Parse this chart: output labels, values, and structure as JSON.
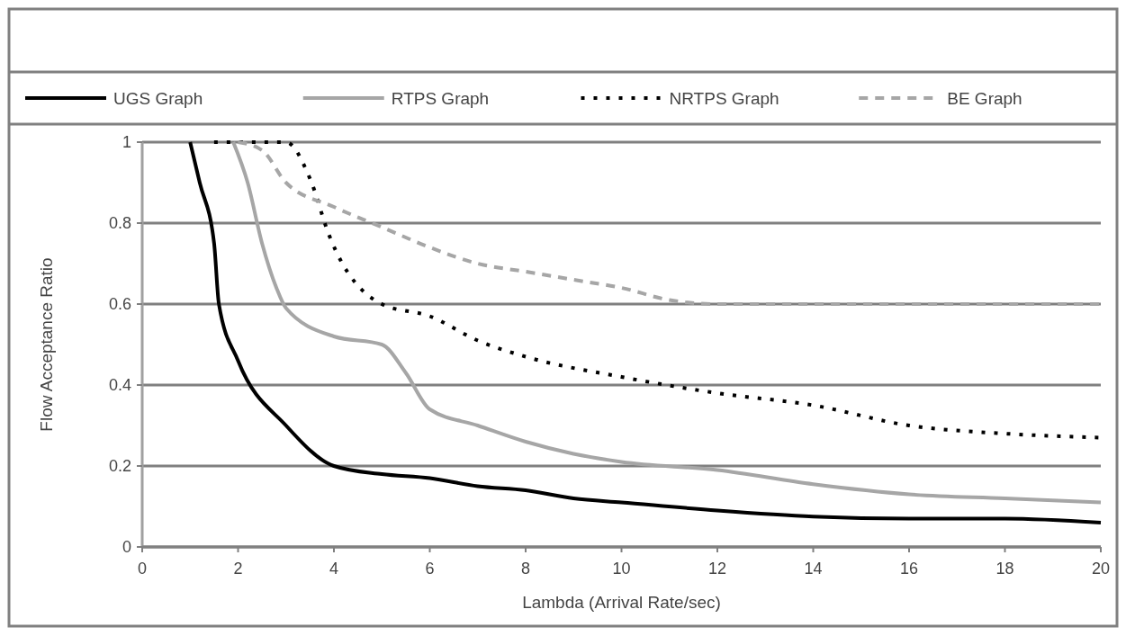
{
  "chart_data": {
    "type": "line",
    "xlabel": "Lambda (Arrival Rate/sec)",
    "ylabel": "Flow Acceptance Ratio",
    "xlim": [
      0,
      20
    ],
    "ylim": [
      0,
      1
    ],
    "xticks": [
      0,
      2,
      4,
      6,
      8,
      10,
      12,
      14,
      16,
      18,
      20
    ],
    "yticks": [
      0,
      0.2,
      0.4,
      0.6,
      0.8,
      1
    ],
    "grid": "y",
    "legend": "top",
    "series": [
      {
        "name": "UGS Graph",
        "color": "#000000",
        "line_style": "solid",
        "x": [
          1,
          1.2,
          1.5,
          1.6,
          2,
          3,
          4,
          5,
          6,
          7,
          8,
          9,
          10,
          12,
          14,
          16,
          18,
          20
        ],
        "values": [
          1,
          0.9,
          0.75,
          0.6,
          0.46,
          0.3,
          0.2,
          0.18,
          0.17,
          0.15,
          0.14,
          0.12,
          0.11,
          0.09,
          0.075,
          0.07,
          0.07,
          0.06
        ]
      },
      {
        "name": "RTPS Graph",
        "color": "#a6a6a6",
        "line_style": "solid",
        "x": [
          1.9,
          2.2,
          2.5,
          2.8,
          3,
          4,
          5,
          5.5,
          6,
          7,
          8,
          9,
          10,
          12,
          14,
          16,
          18,
          20
        ],
        "values": [
          1,
          0.9,
          0.75,
          0.64,
          0.59,
          0.52,
          0.5,
          0.43,
          0.34,
          0.3,
          0.26,
          0.23,
          0.21,
          0.19,
          0.155,
          0.13,
          0.12,
          0.11
        ]
      },
      {
        "name": "NRTPS Graph",
        "color": "#000000",
        "line_style": "dotted",
        "x": [
          1.5,
          3,
          3.5,
          3.9,
          5,
          6,
          7,
          8,
          10,
          12,
          14,
          16,
          18,
          20
        ],
        "values": [
          1,
          1,
          0.91,
          0.77,
          0.6,
          0.57,
          0.51,
          0.47,
          0.42,
          0.38,
          0.35,
          0.3,
          0.28,
          0.27
        ]
      },
      {
        "name": "BE Graph",
        "color": "#a6a6a6",
        "line_style": "dashed",
        "x": [
          2,
          2.5,
          3,
          4,
          5,
          6,
          7,
          8,
          9,
          10,
          11,
          12,
          14,
          16,
          18,
          20
        ],
        "values": [
          1,
          0.98,
          0.9,
          0.84,
          0.79,
          0.74,
          0.7,
          0.68,
          0.66,
          0.64,
          0.61,
          0.6,
          0.6,
          0.6,
          0.6,
          0.6
        ]
      }
    ]
  }
}
